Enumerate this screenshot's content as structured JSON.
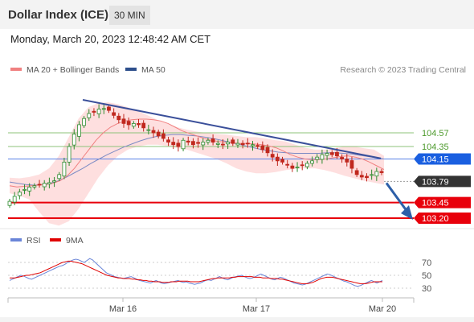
{
  "header": {
    "title": "Dollar Index (ICE)",
    "timeframe": "30 MIN"
  },
  "datetime": "Monday, March 20, 2023 12:48:42 AM CET",
  "copyright": "Research © 2023 Trading Central",
  "colors": {
    "up": "#2e8b2e",
    "down": "#c0281e",
    "trend": "#3a4f9a",
    "ma20": "#f08080",
    "ma50": "#2d4f8c",
    "support": "#e8000b",
    "current": "#333333",
    "resistance_blue": "#1a5fe0",
    "resistance_green": "#8cc37a",
    "rsi": "#6a85d8",
    "rsi_ma": "#e00000"
  },
  "chart_data": {
    "type": "candlestick",
    "timeframe": "30 MIN",
    "ylim": [
      102.9,
      105.3
    ],
    "legend": [
      {
        "name": "MA 20 + Bollinger Bands",
        "color": "#f08080"
      },
      {
        "name": "MA 50",
        "color": "#2d4f8c"
      }
    ],
    "xticks": [
      "Mar 16",
      "Mar 17",
      "Mar 20"
    ],
    "levels": [
      {
        "label": "104.57",
        "value": 104.57,
        "style": "green"
      },
      {
        "label": "104.35",
        "value": 104.35,
        "style": "green"
      },
      {
        "label": "104.15",
        "value": 104.15,
        "style": "blue"
      },
      {
        "label": "103.79",
        "value": 103.79,
        "style": "current"
      },
      {
        "label": "103.45",
        "value": 103.45,
        "style": "red"
      },
      {
        "label": "103.20",
        "value": 103.2,
        "style": "red"
      }
    ],
    "close_path": [
      103.47,
      103.55,
      103.62,
      103.66,
      103.7,
      103.72,
      103.74,
      103.76,
      103.77,
      103.8,
      103.9,
      104.1,
      104.35,
      104.55,
      104.7,
      104.8,
      104.88,
      104.9,
      104.95,
      104.96,
      104.93,
      104.85,
      104.78,
      104.72,
      104.7,
      104.72,
      104.7,
      104.65,
      104.62,
      104.57,
      104.52,
      104.48,
      104.42,
      104.38,
      104.35,
      104.45,
      104.42,
      104.38,
      104.4,
      104.42,
      104.45,
      104.42,
      104.4,
      104.38,
      104.42,
      104.4,
      104.4,
      104.38,
      104.4,
      104.38,
      104.35,
      104.3,
      104.25,
      104.18,
      104.12,
      104.1,
      104.05,
      104.0,
      104.02,
      104.05,
      104.08,
      104.12,
      104.18,
      104.22,
      104.24,
      104.22,
      104.2,
      104.15,
      104.1,
      104.0,
      103.9,
      103.86,
      103.85,
      103.9,
      103.95,
      103.93
    ],
    "trendline": {
      "start": 105.1,
      "end": 104.16
    },
    "forecast": {
      "from": 103.79,
      "to": 103.2
    },
    "ma20": [
      103.72,
      103.7,
      103.71,
      103.72,
      103.73,
      103.74,
      103.76,
      103.8,
      103.88,
      104.0,
      104.15,
      104.3,
      104.45,
      104.57,
      104.66,
      104.72,
      104.76,
      104.78,
      104.79,
      104.79,
      104.78,
      104.76,
      104.72,
      104.66,
      104.6,
      104.56,
      104.52,
      104.48,
      104.45,
      104.43,
      104.42,
      104.41,
      104.4,
      104.4,
      104.39,
      104.38,
      104.36,
      104.33,
      104.28,
      104.22,
      104.18,
      104.15,
      104.14,
      104.14,
      104.15,
      104.17,
      104.19,
      104.2,
      104.18,
      104.15,
      104.1,
      104.04,
      103.98
    ],
    "bb_upper": [
      103.85,
      103.84,
      103.86,
      103.9,
      104.0,
      104.2,
      104.5,
      104.8,
      104.98,
      105.05,
      105.06,
      105.03,
      104.98,
      104.92,
      104.85,
      104.78,
      104.72,
      104.66,
      104.62,
      104.59,
      104.57,
      104.55,
      104.54,
      104.52,
      104.5,
      104.5,
      104.48,
      104.45,
      104.43,
      104.38,
      104.33,
      104.3,
      104.3,
      104.32,
      104.35,
      104.35,
      104.32,
      104.3,
      104.2
    ],
    "bb_lower": [
      103.6,
      103.56,
      103.5,
      103.3,
      103.12,
      103.08,
      103.15,
      103.35,
      103.6,
      103.85,
      104.05,
      104.2,
      104.3,
      104.35,
      104.38,
      104.38,
      104.36,
      104.33,
      104.3,
      104.25,
      104.2,
      104.15,
      104.08,
      104.0,
      103.95,
      103.92,
      103.92,
      103.94,
      103.97,
      103.99,
      104.0,
      104.0,
      103.97,
      103.93,
      103.88,
      103.84,
      103.8,
      103.77,
      103.74
    ],
    "ma50": [
      103.78,
      103.76,
      103.74,
      103.73,
      103.74,
      103.76,
      103.8,
      103.86,
      103.93,
      104.0,
      104.08,
      104.15,
      104.22,
      104.28,
      104.34,
      104.39,
      104.44,
      104.48,
      104.51,
      104.53,
      104.54,
      104.54,
      104.53,
      104.52,
      104.5,
      104.48,
      104.45,
      104.42,
      104.39,
      104.36,
      104.33,
      104.3,
      104.28,
      104.26,
      104.25,
      104.24,
      104.24,
      104.24,
      104.24,
      104.25,
      104.25,
      104.24,
      104.23,
      104.21,
      104.19,
      104.17,
      104.15
    ]
  },
  "rsi_data": {
    "title": "RSI",
    "ma_label": "9MA",
    "levels": [
      {
        "label": "70",
        "value": 70
      },
      {
        "label": "50",
        "value": 50
      },
      {
        "label": "30",
        "value": 30
      }
    ],
    "ylim": [
      15,
      85
    ],
    "rsi": [
      42,
      44,
      46,
      48,
      50,
      49,
      47,
      45,
      44,
      46,
      48,
      50,
      52,
      54,
      56,
      58,
      60,
      62,
      64,
      65,
      67,
      70,
      72,
      74,
      75,
      74,
      72,
      70,
      73,
      76,
      74,
      70,
      66,
      62,
      58,
      54,
      52,
      50,
      48,
      47,
      46,
      45,
      46,
      47,
      48,
      46,
      44,
      42,
      41,
      40,
      39,
      38,
      40,
      42,
      40,
      38,
      37,
      38,
      39,
      40,
      41,
      42,
      40,
      39,
      40,
      38,
      37,
      36,
      37,
      38,
      40,
      42,
      43,
      42,
      44,
      46,
      48,
      46,
      44,
      43,
      45,
      47,
      48,
      49,
      50,
      48,
      46,
      45,
      46,
      48,
      50,
      52,
      50,
      48,
      46,
      44,
      43,
      45,
      47,
      46,
      44,
      42,
      40,
      38,
      37,
      36,
      35,
      36,
      38,
      40,
      42,
      44,
      46,
      48,
      50,
      52,
      51,
      49,
      47,
      45,
      43,
      41,
      40,
      38,
      36,
      34,
      33,
      34,
      36,
      38,
      40,
      42,
      40,
      38,
      40,
      42
    ],
    "ma9": [
      46,
      46,
      46,
      47,
      48,
      49,
      50,
      50,
      51,
      52,
      53,
      54,
      56,
      58,
      60,
      62,
      64,
      66,
      68,
      70,
      71,
      72,
      72,
      71,
      70,
      69,
      68,
      66,
      64,
      62,
      60,
      58,
      56,
      54,
      52,
      50,
      49,
      48,
      47,
      46,
      46,
      45,
      45,
      45,
      44,
      44,
      43,
      43,
      42,
      42,
      41,
      41,
      40,
      40,
      40,
      39,
      39,
      39,
      40,
      40,
      40,
      41,
      41,
      41,
      41,
      40,
      40,
      40,
      40,
      41,
      42,
      43,
      44,
      45,
      45,
      46,
      46,
      46,
      46,
      46,
      47,
      47,
      48,
      48,
      48,
      48,
      48,
      48,
      47,
      47,
      47,
      46,
      46,
      46,
      45,
      45,
      45,
      44,
      44,
      43,
      42,
      41,
      40,
      39,
      38,
      37,
      37,
      37,
      38,
      39,
      41,
      43,
      45,
      46,
      47,
      47,
      47,
      46,
      45,
      44,
      43,
      42,
      41,
      40,
      39,
      38,
      37,
      37,
      37,
      38,
      39,
      40,
      40,
      40,
      40
    ]
  }
}
